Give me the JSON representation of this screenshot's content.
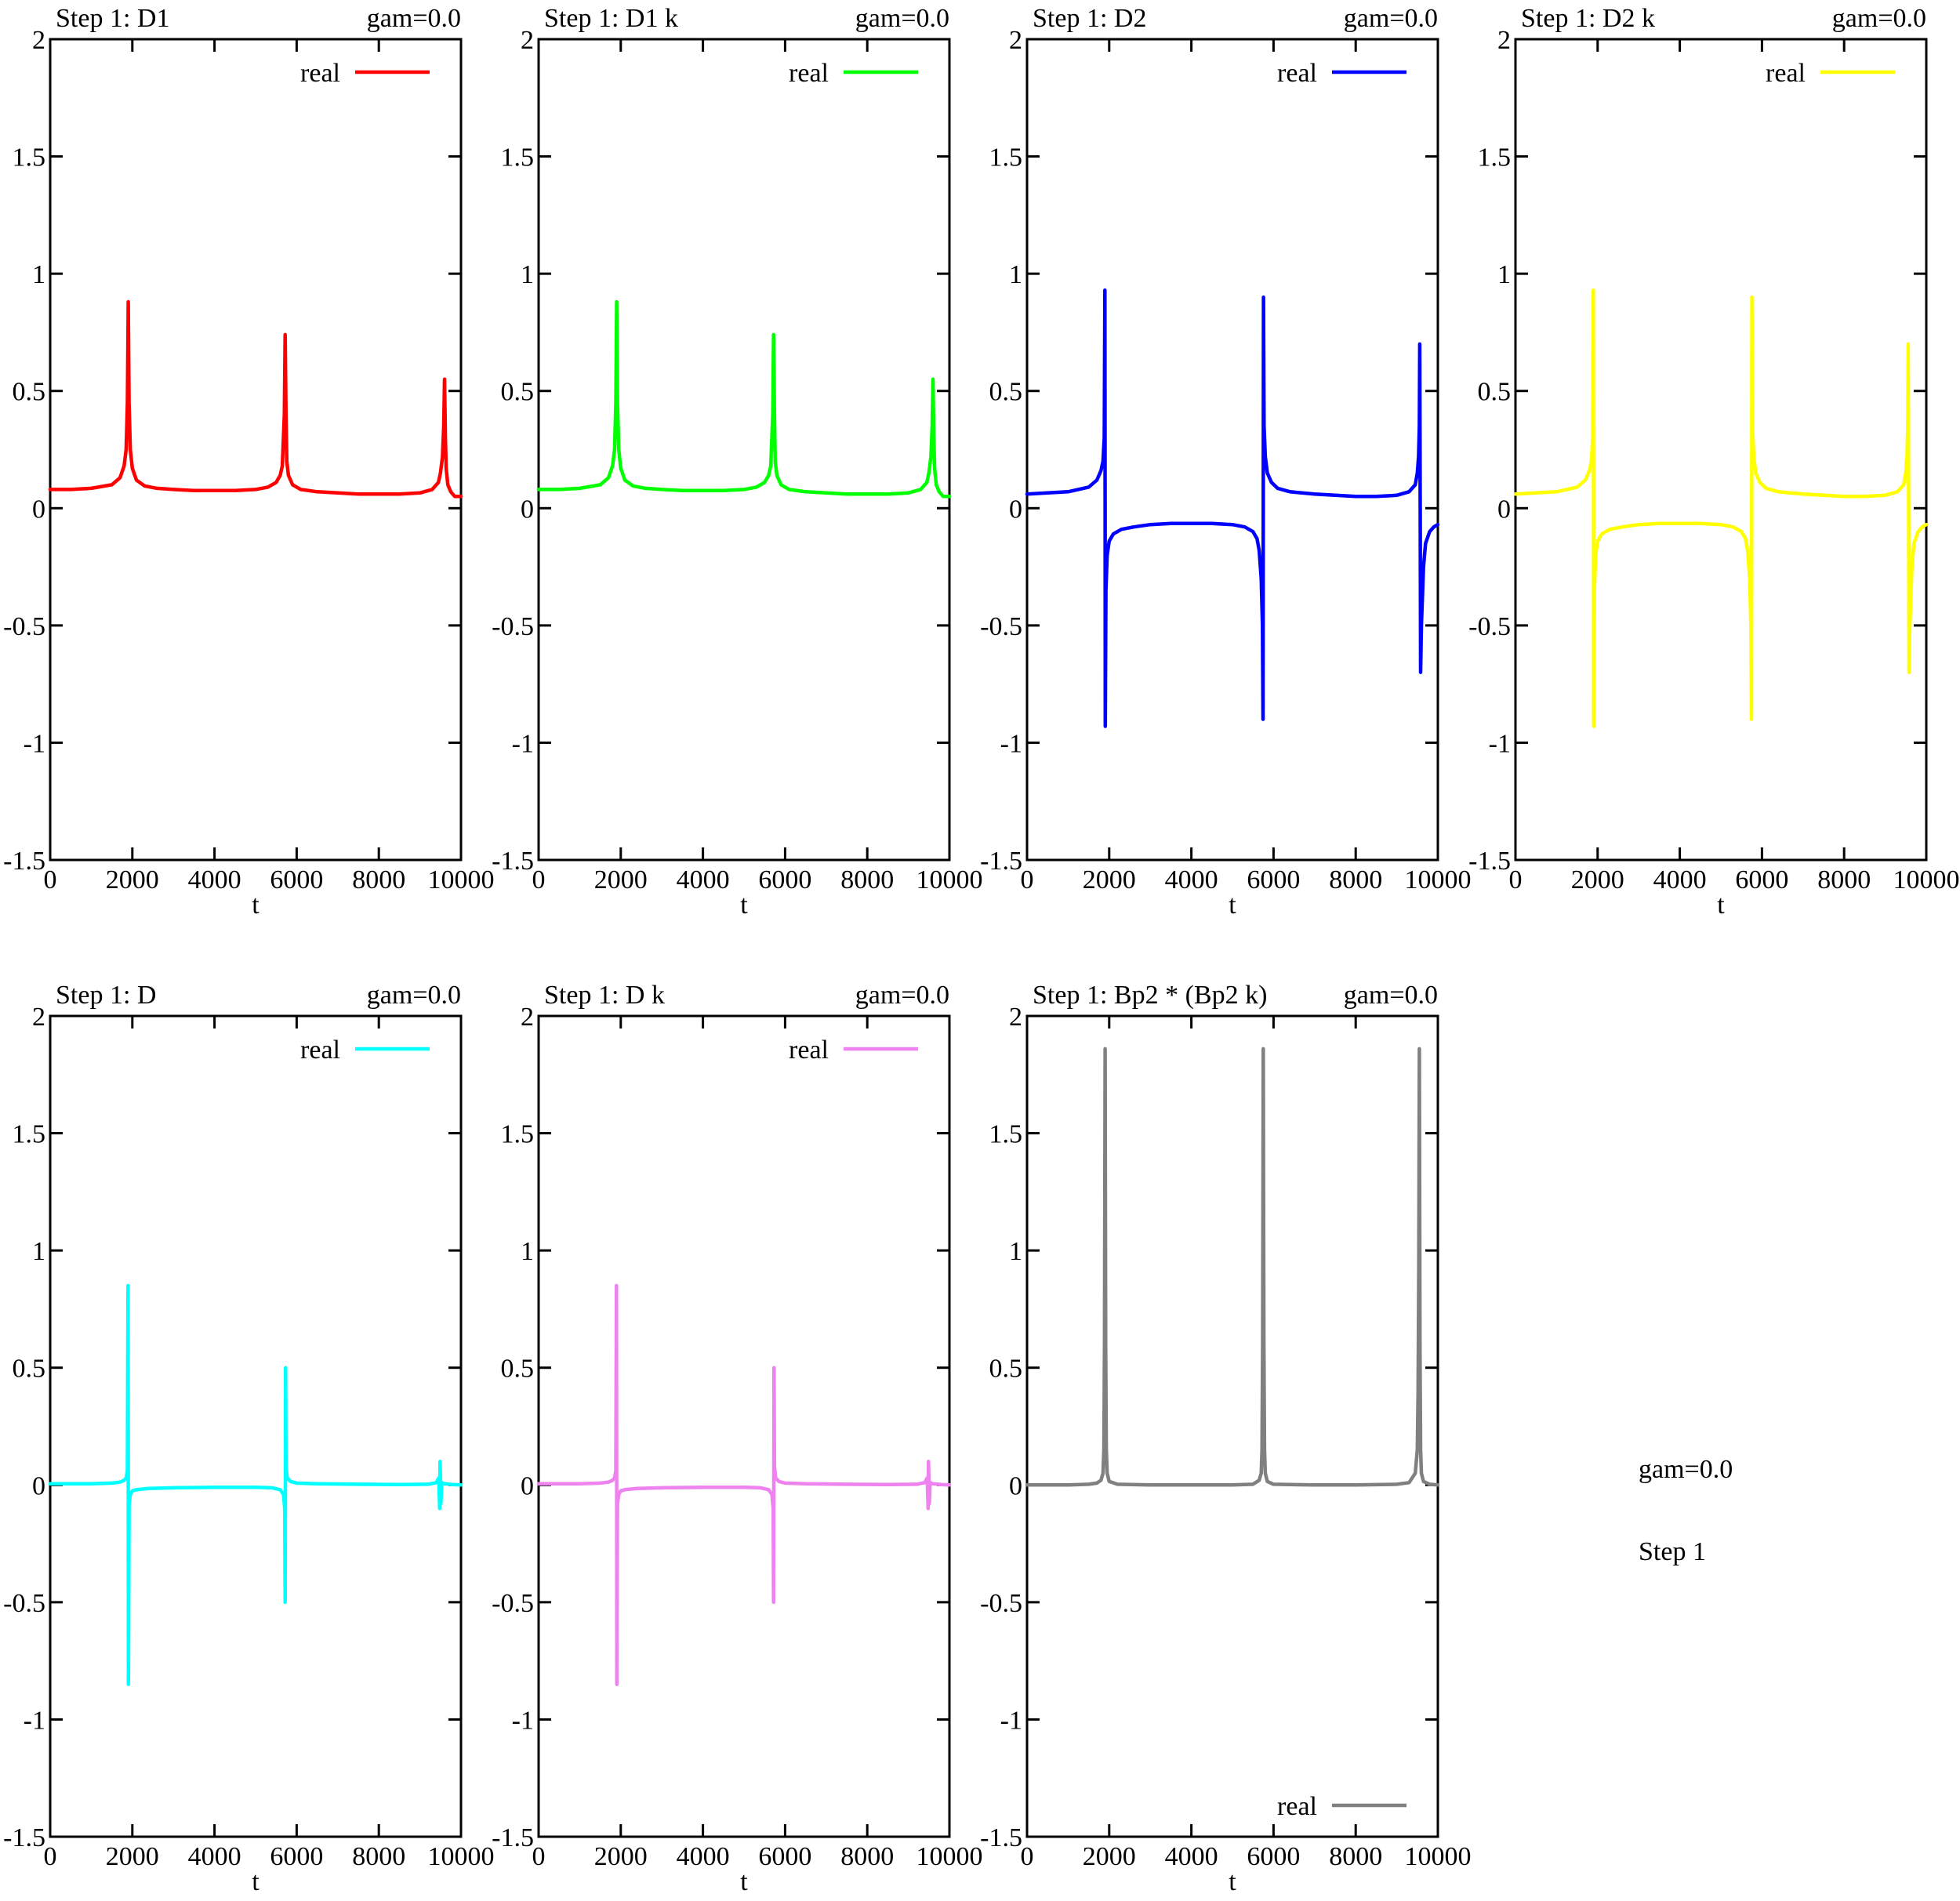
{
  "chart_data": [
    {
      "type": "line",
      "title": "Step 1: D1",
      "subtitle": "gam=0.0",
      "xlabel": "t",
      "ylabel": "",
      "xlim": [
        0,
        10000
      ],
      "ylim": [
        -1.5,
        2
      ],
      "xticks": [
        "0",
        "2000",
        "4000",
        "6000",
        "8000",
        "10000"
      ],
      "yticks": [
        "2",
        "1.5",
        "1",
        "0.5",
        "0",
        "-0.5",
        "-1",
        "-1.5"
      ],
      "legend_position": "top-right",
      "series": [
        {
          "name": "real",
          "color": "#ff0000",
          "x": [
            0,
            500,
            1000,
            1500,
            1700,
            1800,
            1850,
            1880,
            1900,
            1920,
            1950,
            2000,
            2100,
            2300,
            2600,
            3000,
            3500,
            4000,
            4500,
            5000,
            5300,
            5500,
            5600,
            5650,
            5700,
            5720,
            5740,
            5760,
            5800,
            5900,
            6100,
            6500,
            7000,
            7500,
            8000,
            8500,
            9000,
            9300,
            9450,
            9500,
            9550,
            9580,
            9600,
            9620,
            9640,
            9680,
            9750,
            9850,
            10000
          ],
          "y": [
            0.08,
            0.08,
            0.085,
            0.1,
            0.13,
            0.18,
            0.25,
            0.45,
            0.88,
            0.45,
            0.25,
            0.17,
            0.12,
            0.095,
            0.085,
            0.08,
            0.075,
            0.075,
            0.075,
            0.08,
            0.09,
            0.11,
            0.14,
            0.18,
            0.4,
            0.74,
            0.4,
            0.2,
            0.14,
            0.1,
            0.08,
            0.07,
            0.065,
            0.06,
            0.06,
            0.06,
            0.065,
            0.08,
            0.11,
            0.15,
            0.22,
            0.35,
            0.55,
            0.3,
            0.17,
            0.1,
            0.07,
            0.05,
            0.05
          ]
        }
      ]
    },
    {
      "type": "line",
      "title": "Step 1: D1 k",
      "subtitle": "gam=0.0",
      "xlabel": "t",
      "ylabel": "",
      "xlim": [
        0,
        10000
      ],
      "ylim": [
        -1.5,
        2
      ],
      "xticks": [
        "0",
        "2000",
        "4000",
        "6000",
        "8000",
        "10000"
      ],
      "yticks": [
        "2",
        "1.5",
        "1",
        "0.5",
        "0",
        "-0.5",
        "-1",
        "-1.5"
      ],
      "legend_position": "top-right",
      "series": [
        {
          "name": "real",
          "color": "#00ff00",
          "x": [
            0,
            500,
            1000,
            1500,
            1700,
            1800,
            1850,
            1880,
            1900,
            1920,
            1950,
            2000,
            2100,
            2300,
            2600,
            3000,
            3500,
            4000,
            4500,
            5000,
            5300,
            5500,
            5600,
            5650,
            5700,
            5720,
            5740,
            5760,
            5800,
            5900,
            6100,
            6500,
            7000,
            7500,
            8000,
            8500,
            9000,
            9300,
            9450,
            9500,
            9550,
            9580,
            9600,
            9620,
            9640,
            9680,
            9750,
            9850,
            10000
          ],
          "y": [
            0.08,
            0.08,
            0.085,
            0.1,
            0.13,
            0.18,
            0.25,
            0.45,
            0.88,
            0.45,
            0.25,
            0.17,
            0.12,
            0.095,
            0.085,
            0.08,
            0.075,
            0.075,
            0.075,
            0.08,
            0.09,
            0.11,
            0.14,
            0.18,
            0.4,
            0.74,
            0.4,
            0.2,
            0.14,
            0.1,
            0.08,
            0.07,
            0.065,
            0.06,
            0.06,
            0.06,
            0.065,
            0.08,
            0.11,
            0.15,
            0.22,
            0.35,
            0.55,
            0.3,
            0.17,
            0.1,
            0.07,
            0.05,
            0.05
          ]
        }
      ]
    },
    {
      "type": "line",
      "title": "Step 1: D2",
      "subtitle": "gam=0.0",
      "xlabel": "t",
      "ylabel": "",
      "xlim": [
        0,
        10000
      ],
      "ylim": [
        -1.5,
        2
      ],
      "xticks": [
        "0",
        "2000",
        "4000",
        "6000",
        "8000",
        "10000"
      ],
      "yticks": [
        "2",
        "1.5",
        "1",
        "0.5",
        "0",
        "-0.5",
        "-1",
        "-1.5"
      ],
      "legend_position": "top-right",
      "series": [
        {
          "name": "real",
          "color": "#0000ff",
          "x": [
            0,
            500,
            1000,
            1500,
            1700,
            1800,
            1850,
            1880,
            1895,
            1900,
            1905,
            1920,
            1950,
            2000,
            2100,
            2300,
            2600,
            3000,
            3500,
            4000,
            4500,
            5000,
            5300,
            5500,
            5600,
            5650,
            5700,
            5730,
            5745,
            5750,
            5755,
            5770,
            5800,
            5850,
            5950,
            6100,
            6400,
            7000,
            7500,
            8000,
            8500,
            9000,
            9300,
            9450,
            9500,
            9530,
            9550,
            9560,
            9570,
            9580,
            9600,
            9650,
            9700,
            9800,
            9900,
            10000
          ],
          "y": [
            0.06,
            0.065,
            0.07,
            0.09,
            0.12,
            0.16,
            0.2,
            0.3,
            0.93,
            0.0,
            -0.93,
            -0.35,
            -0.2,
            -0.14,
            -0.11,
            -0.09,
            -0.08,
            -0.07,
            -0.065,
            -0.065,
            -0.065,
            -0.07,
            -0.08,
            -0.1,
            -0.13,
            -0.18,
            -0.3,
            -0.5,
            -0.9,
            0.0,
            0.9,
            0.35,
            0.22,
            0.15,
            0.11,
            0.085,
            0.07,
            0.06,
            0.055,
            0.05,
            0.05,
            0.055,
            0.07,
            0.1,
            0.15,
            0.22,
            0.35,
            0.7,
            0.0,
            -0.7,
            -0.5,
            -0.25,
            -0.15,
            -0.1,
            -0.08,
            -0.07
          ]
        }
      ]
    },
    {
      "type": "line",
      "title": "Step 1: D2 k",
      "subtitle": "gam=0.0",
      "xlabel": "t",
      "ylabel": "",
      "xlim": [
        0,
        10000
      ],
      "ylim": [
        -1.5,
        2
      ],
      "xticks": [
        "0",
        "2000",
        "4000",
        "6000",
        "8000",
        "10000"
      ],
      "yticks": [
        "2",
        "1.5",
        "1",
        "0.5",
        "0",
        "-0.5",
        "-1",
        "-1.5"
      ],
      "legend_position": "top-right",
      "series": [
        {
          "name": "real",
          "color": "#ffff00",
          "x": [
            0,
            500,
            1000,
            1500,
            1700,
            1800,
            1850,
            1880,
            1895,
            1900,
            1905,
            1920,
            1950,
            2000,
            2100,
            2300,
            2600,
            3000,
            3500,
            4000,
            4500,
            5000,
            5300,
            5500,
            5600,
            5650,
            5700,
            5730,
            5745,
            5750,
            5755,
            5770,
            5800,
            5850,
            5950,
            6100,
            6400,
            7000,
            7500,
            8000,
            8500,
            9000,
            9300,
            9450,
            9500,
            9530,
            9550,
            9560,
            9570,
            9580,
            9600,
            9650,
            9700,
            9800,
            9900,
            10000
          ],
          "y": [
            0.06,
            0.065,
            0.07,
            0.09,
            0.12,
            0.16,
            0.2,
            0.3,
            0.93,
            0.0,
            -0.93,
            -0.35,
            -0.2,
            -0.14,
            -0.11,
            -0.09,
            -0.08,
            -0.07,
            -0.065,
            -0.065,
            -0.065,
            -0.07,
            -0.08,
            -0.1,
            -0.13,
            -0.18,
            -0.3,
            -0.5,
            -0.9,
            0.0,
            0.9,
            0.35,
            0.22,
            0.15,
            0.11,
            0.085,
            0.07,
            0.06,
            0.055,
            0.05,
            0.05,
            0.055,
            0.07,
            0.1,
            0.15,
            0.22,
            0.35,
            0.7,
            0.0,
            -0.7,
            -0.5,
            -0.25,
            -0.15,
            -0.1,
            -0.08,
            -0.07
          ]
        }
      ]
    },
    {
      "type": "line",
      "title": "Step 1: D",
      "subtitle": "gam=0.0",
      "xlabel": "t",
      "ylabel": "",
      "xlim": [
        0,
        10000
      ],
      "ylim": [
        -1.5,
        2
      ],
      "xticks": [
        "0",
        "2000",
        "4000",
        "6000",
        "8000",
        "10000"
      ],
      "yticks": [
        "2",
        "1.5",
        "1",
        "0.5",
        "0",
        "-0.5",
        "-1",
        "-1.5"
      ],
      "legend_position": "top-right",
      "series": [
        {
          "name": "real",
          "color": "#00ffff",
          "x": [
            0,
            1000,
            1500,
            1700,
            1800,
            1850,
            1880,
            1895,
            1900,
            1905,
            1920,
            1950,
            2000,
            2100,
            2400,
            3000,
            4000,
            5000,
            5400,
            5600,
            5680,
            5710,
            5720,
            5725,
            5730,
            5740,
            5770,
            5850,
            6000,
            6500,
            7500,
            8500,
            9200,
            9400,
            9460,
            9480,
            9490,
            9500,
            9510,
            9530,
            9600,
            9800,
            10000
          ],
          "y": [
            0.005,
            0.005,
            0.008,
            0.012,
            0.02,
            0.03,
            0.06,
            0.85,
            0.0,
            -0.85,
            -0.08,
            -0.04,
            -0.025,
            -0.02,
            -0.015,
            -0.012,
            -0.01,
            -0.01,
            -0.012,
            -0.02,
            -0.04,
            -0.1,
            -0.5,
            0.0,
            0.5,
            0.08,
            0.03,
            0.015,
            0.008,
            0.005,
            0.003,
            0.002,
            0.003,
            0.01,
            0.03,
            -0.1,
            0.1,
            0.03,
            -0.08,
            0.01,
            0.005,
            0.002,
            0.0
          ]
        }
      ]
    },
    {
      "type": "line",
      "title": "Step 1: D k",
      "subtitle": "gam=0.0",
      "xlabel": "t",
      "ylabel": "",
      "xlim": [
        0,
        10000
      ],
      "ylim": [
        -1.5,
        2
      ],
      "xticks": [
        "0",
        "2000",
        "4000",
        "6000",
        "8000",
        "10000"
      ],
      "yticks": [
        "2",
        "1.5",
        "1",
        "0.5",
        "0",
        "-0.5",
        "-1",
        "-1.5"
      ],
      "legend_position": "top-right",
      "series": [
        {
          "name": "real",
          "color": "#ee82ee",
          "x": [
            0,
            1000,
            1500,
            1700,
            1800,
            1850,
            1880,
            1895,
            1900,
            1905,
            1920,
            1950,
            2000,
            2100,
            2400,
            3000,
            4000,
            5000,
            5400,
            5600,
            5680,
            5710,
            5720,
            5725,
            5730,
            5740,
            5770,
            5850,
            6000,
            6500,
            7500,
            8500,
            9200,
            9400,
            9460,
            9480,
            9490,
            9500,
            9510,
            9530,
            9600,
            9800,
            10000
          ],
          "y": [
            0.005,
            0.005,
            0.008,
            0.012,
            0.02,
            0.03,
            0.06,
            0.85,
            0.0,
            -0.85,
            -0.08,
            -0.04,
            -0.025,
            -0.02,
            -0.015,
            -0.012,
            -0.01,
            -0.01,
            -0.012,
            -0.02,
            -0.04,
            -0.1,
            -0.5,
            0.0,
            0.5,
            0.08,
            0.03,
            0.015,
            0.008,
            0.005,
            0.003,
            0.002,
            0.003,
            0.01,
            0.03,
            -0.1,
            0.1,
            0.03,
            -0.08,
            0.01,
            0.005,
            0.002,
            0.0
          ]
        }
      ]
    },
    {
      "type": "line",
      "title": "Step 1: Bp2 * (Bp2 k)",
      "subtitle": "gam=0.0",
      "xlabel": "t",
      "ylabel": "",
      "xlim": [
        0,
        10000
      ],
      "ylim": [
        -1.5,
        2
      ],
      "xticks": [
        "0",
        "2000",
        "4000",
        "6000",
        "8000",
        "10000"
      ],
      "yticks": [
        "2",
        "1.5",
        "1",
        "0.5",
        "0",
        "-0.5",
        "-1",
        "-1.5"
      ],
      "legend_position": "bottom-right",
      "series": [
        {
          "name": "real",
          "color": "#808080",
          "x": [
            0,
            1000,
            1500,
            1700,
            1800,
            1850,
            1870,
            1885,
            1900,
            1915,
            1930,
            1950,
            2000,
            2200,
            3000,
            4000,
            5000,
            5500,
            5650,
            5700,
            5720,
            5735,
            5750,
            5765,
            5780,
            5800,
            5850,
            6000,
            7000,
            8000,
            9000,
            9300,
            9450,
            9500,
            9520,
            9535,
            9550,
            9565,
            9580,
            9600,
            9650,
            9800,
            10000
          ],
          "y": [
            0.0,
            0.0,
            0.003,
            0.008,
            0.02,
            0.05,
            0.15,
            0.6,
            1.86,
            0.6,
            0.15,
            0.05,
            0.015,
            0.003,
            0.0,
            0.0,
            0.0,
            0.003,
            0.02,
            0.05,
            0.15,
            0.6,
            1.86,
            0.6,
            0.15,
            0.05,
            0.015,
            0.003,
            0.0,
            0.0,
            0.003,
            0.01,
            0.05,
            0.15,
            0.4,
            0.9,
            1.86,
            0.6,
            0.15,
            0.05,
            0.015,
            0.003,
            0.0
          ]
        }
      ]
    }
  ],
  "side_notes": {
    "line1": "gam=0.0",
    "line2": "Step 1"
  }
}
